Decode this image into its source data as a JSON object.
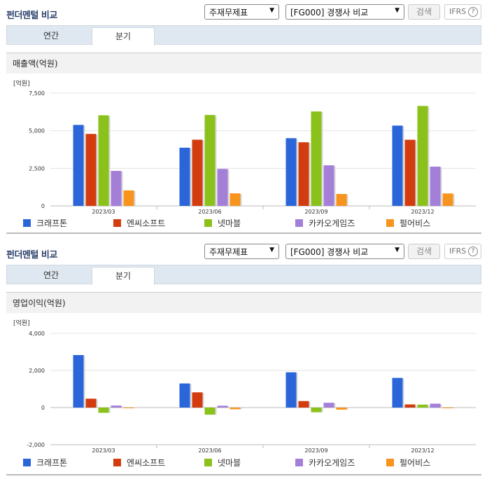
{
  "panels": [
    {
      "header_title": "펀더멘털 비교",
      "statement_select": "주재무제표",
      "compare_select": "[FG000] 경쟁사 비교",
      "search_label": "검색",
      "ifrs_label": "IFRS",
      "help_glyph": "?",
      "tabs": [
        {
          "label": "연간"
        },
        {
          "label": "분기",
          "active": true
        }
      ],
      "chart_title": "매출액(억원)"
    },
    {
      "header_title": "펀더멘털 비교",
      "statement_select": "주재무제표",
      "compare_select": "[FG000] 경쟁사 비교",
      "search_label": "검색",
      "ifrs_label": "IFRS",
      "help_glyph": "?",
      "tabs": [
        {
          "label": "연간"
        },
        {
          "label": "분기",
          "active": true
        }
      ],
      "chart_title": "영업이익(억원)"
    }
  ],
  "chart_data": [
    {
      "type": "bar",
      "unit_label": "[억원]",
      "categories": [
        "2023/03",
        "2023/06",
        "2023/09",
        "2023/12"
      ],
      "ylim": [
        0,
        7500
      ],
      "yticks": [
        0,
        2500,
        5000,
        7500
      ],
      "ytick_labels": [
        "0",
        "2,500",
        "5,000",
        "7,500"
      ],
      "series": [
        {
          "name": "크래프톤",
          "color": "#2a66d9",
          "values": [
            5387,
            3871,
            4503,
            5341
          ]
        },
        {
          "name": "엔씨소프트",
          "color": "#d23c0e",
          "values": [
            4788,
            4402,
            4231,
            4398
          ]
        },
        {
          "name": "넷마블",
          "color": "#8ac21b",
          "values": [
            6026,
            6047,
            6281,
            6649
          ]
        },
        {
          "name": "카카오게임즈",
          "color": "#a47fd8",
          "values": [
            2329,
            2458,
            2700,
            2612
          ]
        },
        {
          "name": "펄어비스",
          "color": "#f7941d",
          "values": [
            1030,
            834,
            794,
            828
          ]
        }
      ]
    },
    {
      "type": "bar",
      "unit_label": "[억원]",
      "categories": [
        "2023/03",
        "2023/06",
        "2023/09",
        "2023/12"
      ],
      "ylim": [
        -2000,
        4000
      ],
      "yticks": [
        -2000,
        0,
        2000,
        4000
      ],
      "ytick_labels": [
        "-2,000",
        "0",
        "2,000",
        "4,000"
      ],
      "series": [
        {
          "name": "크래프톤",
          "color": "#2a66d9",
          "values": [
            2830,
            1300,
            1900,
            1600
          ]
        },
        {
          "name": "엔씨소프트",
          "color": "#d23c0e",
          "values": [
            480,
            820,
            350,
            170
          ]
        },
        {
          "name": "넷마블",
          "color": "#8ac21b",
          "values": [
            -280,
            -380,
            -250,
            160
          ]
        },
        {
          "name": "카카오게임즈",
          "color": "#a47fd8",
          "values": [
            110,
            100,
            260,
            210
          ]
        },
        {
          "name": "펄어비스",
          "color": "#f7941d",
          "values": [
            -30,
            -90,
            -110,
            -30
          ]
        }
      ]
    }
  ]
}
